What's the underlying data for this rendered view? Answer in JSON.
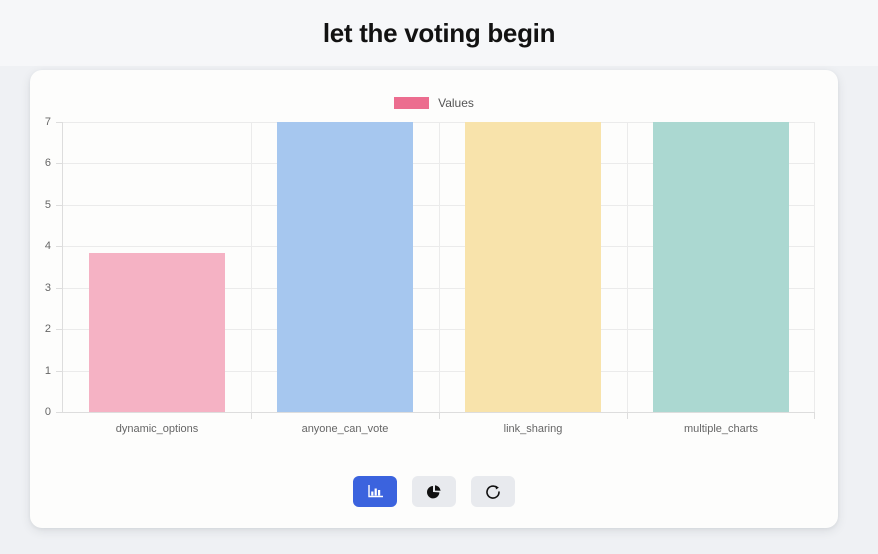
{
  "page": {
    "title": "let the voting begin"
  },
  "legend": {
    "label": "Values",
    "swatch_color": "#ec6d8f"
  },
  "chart_data": {
    "type": "bar",
    "title": "",
    "categories": [
      "dynamic_options",
      "anyone_can_vote",
      "link_sharing",
      "multiple_charts"
    ],
    "values": [
      3.85,
      7,
      7,
      7
    ],
    "series_label": "Values",
    "bar_colors": [
      "#f5b2c4",
      "#a6c7ef",
      "#f8e3ab",
      "#abd8d1"
    ],
    "xlabel": "",
    "ylabel": "",
    "ylim": [
      0,
      7
    ],
    "yticks": [
      0,
      1,
      2,
      3,
      4,
      5,
      6,
      7
    ],
    "grid": true,
    "legend_position": "top"
  },
  "toolbar": {
    "buttons": [
      {
        "name": "bar-chart",
        "active": true
      },
      {
        "name": "pie-chart",
        "active": false
      },
      {
        "name": "refresh",
        "active": false
      }
    ],
    "active_color": "#3b63de",
    "inactive_color": "#e8eaee"
  },
  "colors": {
    "page_bg": "#eff1f4",
    "card_bg": "#fdfdfc",
    "grid": "#ebebeb",
    "axis_border": "#dddddd",
    "tick_text": "#666666",
    "title_text": "#121212"
  }
}
